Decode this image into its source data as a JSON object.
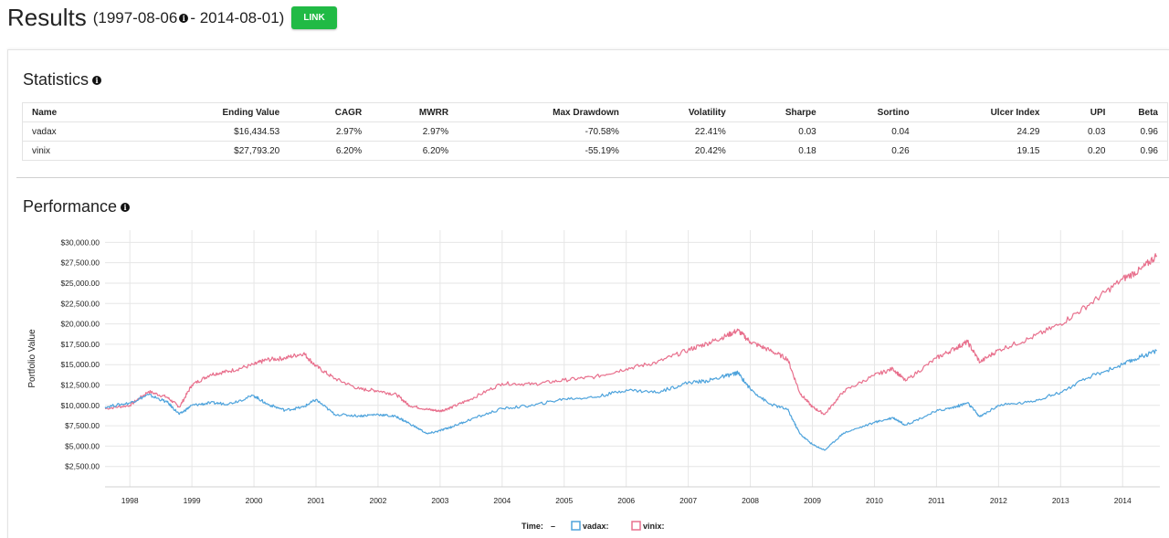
{
  "header": {
    "title": "Results",
    "range_start": "(1997-08-06",
    "range_end": " - 2014-08-01)",
    "link_label": "LINK"
  },
  "statistics": {
    "title": "Statistics",
    "columns": [
      "Name",
      "Ending Value",
      "CAGR",
      "MWRR",
      "Max Drawdown",
      "Volatility",
      "Sharpe",
      "Sortino",
      "Ulcer Index",
      "UPI",
      "Beta"
    ],
    "rows": [
      [
        "vadax",
        "$16,434.53",
        "2.97%",
        "2.97%",
        "-70.58%",
        "22.41%",
        "0.03",
        "0.04",
        "24.29",
        "0.03",
        "0.96"
      ],
      [
        "vinix",
        "$27,793.20",
        "6.20%",
        "6.20%",
        "-55.19%",
        "20.42%",
        "0.18",
        "0.26",
        "19.15",
        "0.20",
        "0.96"
      ]
    ]
  },
  "performance": {
    "title": "Performance"
  },
  "chart_data": {
    "type": "line",
    "ylabel": "Portfolio Value",
    "ylim": [
      0,
      31500
    ],
    "xlim": [
      1997.6,
      2014.6
    ],
    "y_ticks": [
      2500,
      5000,
      7500,
      10000,
      12500,
      15000,
      17500,
      20000,
      22500,
      25000,
      27500,
      30000
    ],
    "y_tick_labels": [
      "$2,500.00",
      "$5,000.00",
      "$7,500.00",
      "$10,000.00",
      "$12,500.00",
      "$15,000.00",
      "$17,500.00",
      "$20,000.00",
      "$22,500.00",
      "$25,000.00",
      "$27,500.00",
      "$30,000.00"
    ],
    "x_ticks": [
      1998,
      1999,
      2000,
      2001,
      2002,
      2003,
      2004,
      2005,
      2006,
      2007,
      2008,
      2009,
      2010,
      2011,
      2012,
      2013,
      2014
    ],
    "x_tick_labels": [
      "1998",
      "1999",
      "2000",
      "2001",
      "2002",
      "2003",
      "2004",
      "2005",
      "2006",
      "2007",
      "2008",
      "2009",
      "2010",
      "2011",
      "2012",
      "2013",
      "2014"
    ],
    "grid": true,
    "legend_position": "bottom",
    "legend_time_label": "Time:",
    "legend_time_value": "–",
    "series": [
      {
        "name": "vadax:",
        "color": "#4ea3dc",
        "x": [
          1997.6,
          1998.0,
          1998.3,
          1998.6,
          1998.8,
          1999.0,
          1999.3,
          1999.6,
          2000.0,
          2000.2,
          2000.5,
          2000.8,
          2001.0,
          2001.3,
          2001.7,
          2002.0,
          2002.3,
          2002.5,
          2002.8,
          2003.0,
          2003.2,
          2003.5,
          2004.0,
          2004.5,
          2005.0,
          2005.5,
          2006.0,
          2006.5,
          2007.0,
          2007.3,
          2007.6,
          2007.8,
          2008.0,
          2008.3,
          2008.6,
          2008.8,
          2009.0,
          2009.2,
          2009.5,
          2010.0,
          2010.3,
          2010.5,
          2011.0,
          2011.3,
          2011.5,
          2011.7,
          2012.0,
          2012.5,
          2013.0,
          2013.5,
          2014.0,
          2014.3,
          2014.55
        ],
        "y": [
          9800,
          10300,
          11300,
          10400,
          8900,
          10000,
          10300,
          10200,
          11200,
          10200,
          9400,
          9800,
          10700,
          8900,
          8700,
          8900,
          8600,
          7800,
          6500,
          6900,
          7400,
          8300,
          9600,
          10000,
          10800,
          11000,
          11900,
          11600,
          12800,
          13000,
          13600,
          14000,
          12000,
          10200,
          9500,
          6500,
          5200,
          4500,
          6600,
          7900,
          8500,
          7600,
          9300,
          9800,
          10300,
          8600,
          10000,
          10400,
          11600,
          13600,
          15000,
          16000,
          16700
        ]
      },
      {
        "name": "vinix:",
        "color": "#e8708d",
        "x": [
          1997.6,
          1998.0,
          1998.3,
          1998.6,
          1998.8,
          1999.0,
          1999.3,
          1999.6,
          2000.0,
          2000.2,
          2000.5,
          2000.8,
          2001.0,
          2001.3,
          2001.7,
          2002.0,
          2002.3,
          2002.5,
          2002.8,
          2003.0,
          2003.2,
          2003.5,
          2004.0,
          2004.5,
          2005.0,
          2005.5,
          2006.0,
          2006.5,
          2007.0,
          2007.3,
          2007.6,
          2007.8,
          2008.0,
          2008.3,
          2008.6,
          2008.8,
          2009.0,
          2009.2,
          2009.5,
          2010.0,
          2010.3,
          2010.5,
          2011.0,
          2011.3,
          2011.5,
          2011.7,
          2012.0,
          2012.5,
          2013.0,
          2013.5,
          2014.0,
          2014.3,
          2014.55
        ],
        "y": [
          9600,
          10000,
          11700,
          11000,
          9800,
          12500,
          13800,
          14200,
          15000,
          15600,
          15800,
          16400,
          14800,
          13300,
          12000,
          11800,
          11300,
          10000,
          9500,
          9300,
          9800,
          10800,
          12700,
          12600,
          13100,
          13500,
          14500,
          15300,
          16800,
          17600,
          18500,
          19200,
          17800,
          16800,
          15700,
          11500,
          9800,
          8900,
          11700,
          13700,
          14500,
          13000,
          15800,
          17000,
          17800,
          15300,
          16800,
          18200,
          20000,
          22600,
          25500,
          26700,
          28400
        ]
      }
    ]
  }
}
